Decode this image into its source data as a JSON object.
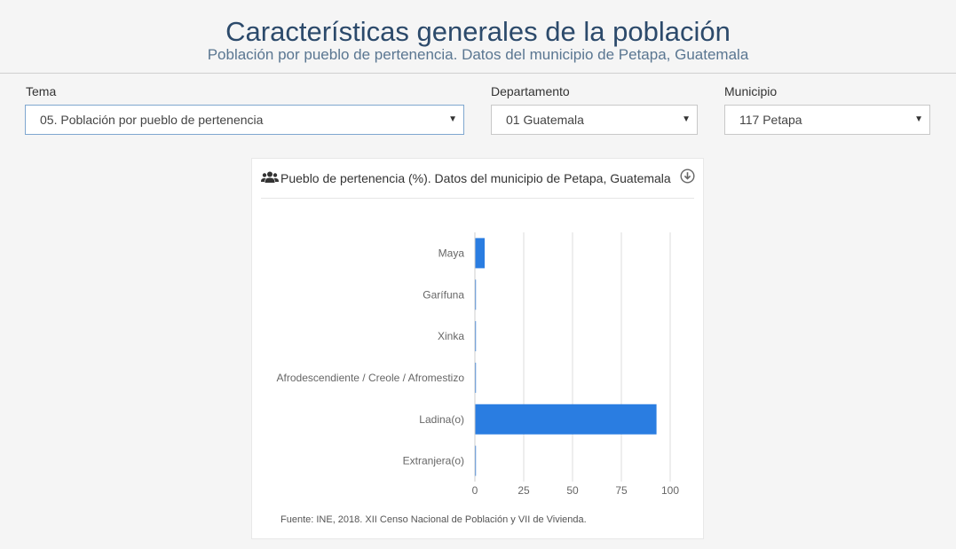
{
  "header": {
    "title": "Características generales de la población",
    "subtitle": "Población por pueblo de pertenencia. Datos del municipio de Petapa, Guatemala"
  },
  "filters": {
    "tema": {
      "label": "Tema",
      "value": "05. Población por pueblo de pertenencia"
    },
    "departamento": {
      "label": "Departamento",
      "value": "01 Guatemala"
    },
    "municipio": {
      "label": "Municipio",
      "value": "117 Petapa"
    }
  },
  "card": {
    "title": "Pueblo de pertenencia (%). Datos del municipio de Petapa, Guatemala",
    "source": "Fuente: INE, 2018. XII Censo Nacional de Población y VII de Vivienda.",
    "icons": {
      "title": "users-icon",
      "download": "download-icon"
    }
  },
  "colors": {
    "bar": "#2a7de1",
    "title": "#2c4a6b",
    "grid": "#dddddd"
  },
  "chart_data": {
    "type": "bar",
    "orientation": "horizontal",
    "title": "Pueblo de pertenencia (%). Datos del municipio de Petapa, Guatemala",
    "categories": [
      "Maya",
      "Garífuna",
      "Xinka",
      "Afrodescendiente / Creole / Afromestizo",
      "Ladina(o)",
      "Extranjera(o)"
    ],
    "values": [
      5,
      0.2,
      0.1,
      0.2,
      93,
      0.3
    ],
    "xlim": [
      0,
      100
    ],
    "xticks": [
      "0",
      "25",
      "50",
      "75",
      "100"
    ],
    "grid": true,
    "legend": false
  }
}
